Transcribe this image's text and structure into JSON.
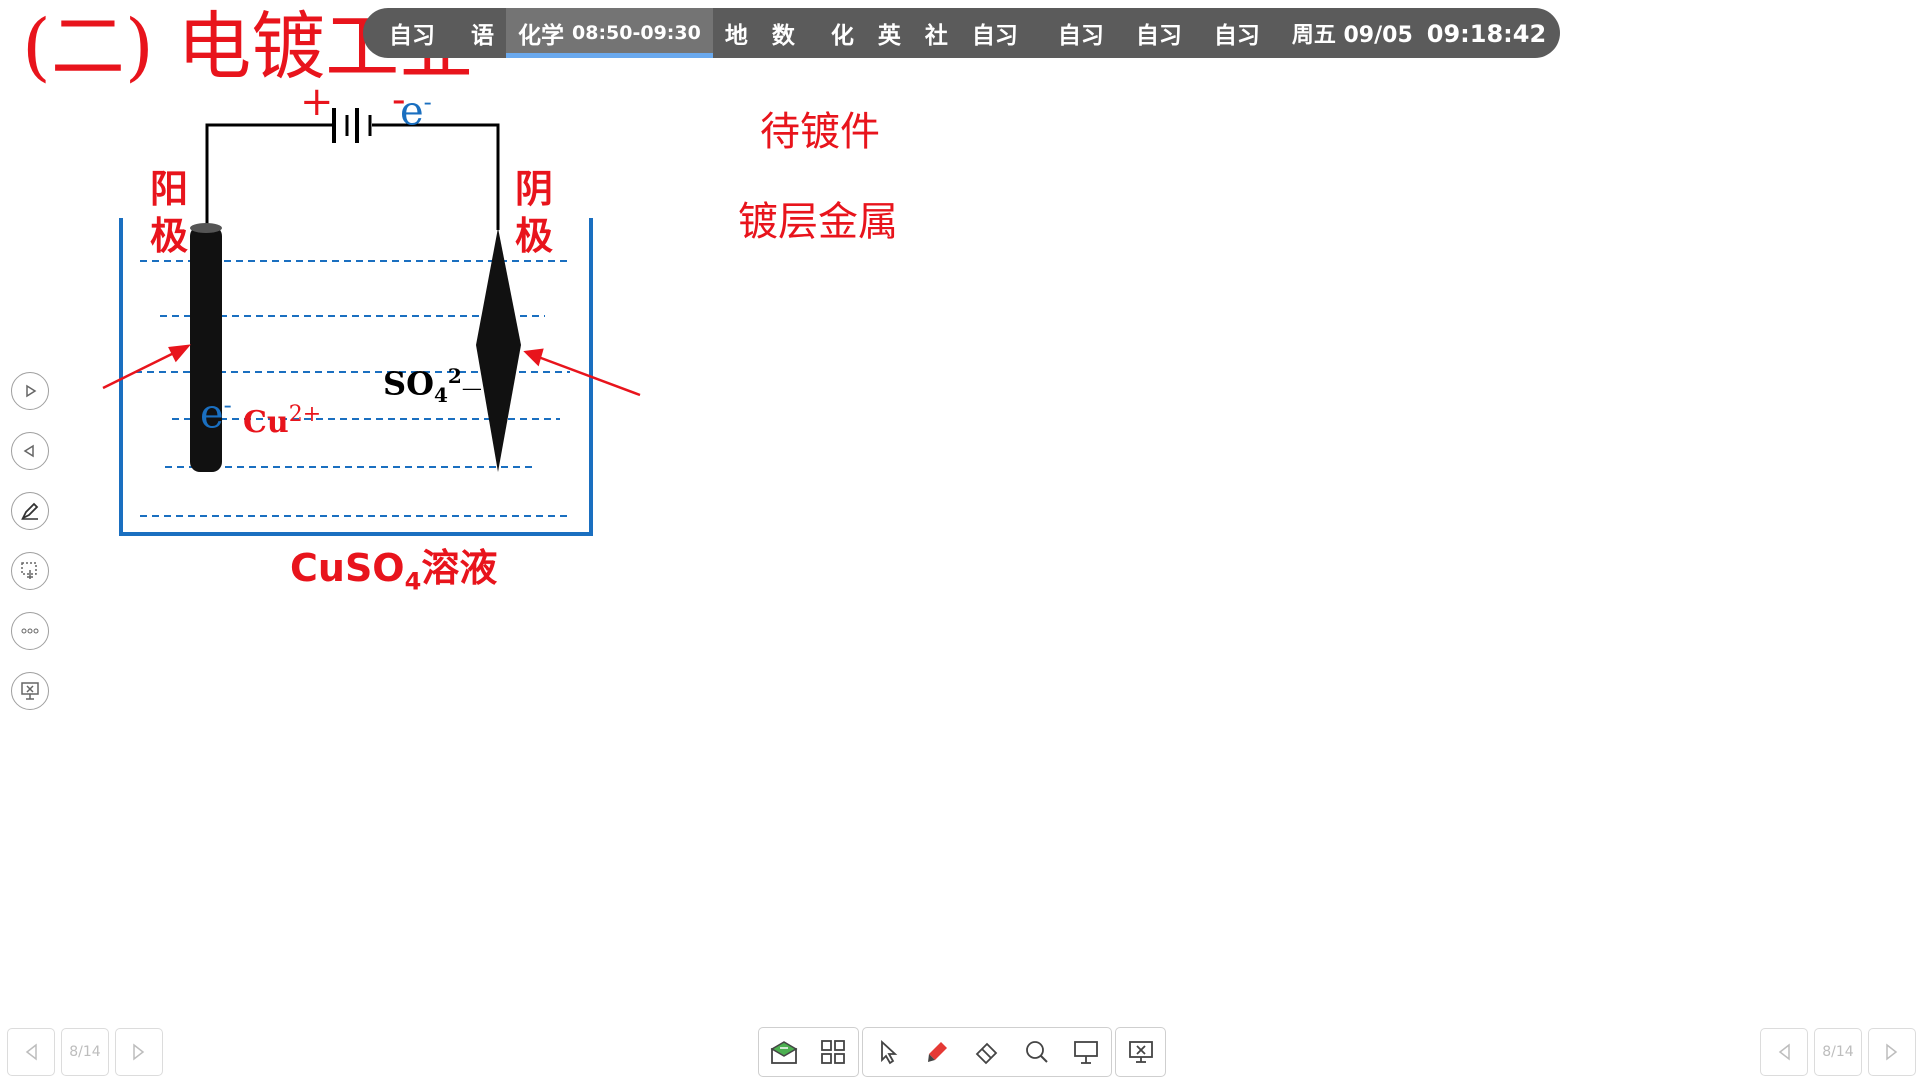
{
  "slide": {
    "title": "(二) 电镀工业",
    "labels": {
      "anode_line1": "阳",
      "anode_line2": "极",
      "cathode_line1": "阴",
      "cathode_line2": "极",
      "battery_plus": "+",
      "battery_minus": "-",
      "electron_top": "e",
      "electron_top_sup": "-",
      "electron_anode": "e",
      "electron_anode_sup": "-",
      "cu_ion": "Cu",
      "cu_ion_sup": "2+",
      "sulfate": "SO",
      "sulfate_sub": "4",
      "sulfate_sup": "2",
      "sulfate_dash": "—",
      "solution": "CuSO",
      "solution_sub": "4",
      "solution_suffix": "溶液",
      "to_be_plated": "待镀件",
      "plating_metal": "镀层金属"
    }
  },
  "schedule_bar": {
    "group1": [
      {
        "label": "自习"
      }
    ],
    "group2": [
      {
        "label": "语"
      }
    ],
    "current": {
      "label": "化学",
      "time": "08:50-09:30"
    },
    "group3": [
      {
        "label": "地"
      },
      {
        "label": "数"
      }
    ],
    "group4": [
      {
        "label": "化"
      },
      {
        "label": "英"
      },
      {
        "label": "社"
      },
      {
        "label": "自习"
      }
    ],
    "group5": [
      {
        "label": "自习"
      },
      {
        "label": "自习"
      },
      {
        "label": "自习"
      }
    ],
    "clock": {
      "day": "周五 09/05",
      "time": "09:18:42"
    }
  },
  "side_toolbar": [
    "next-slide-icon",
    "prev-slide-icon",
    "pen-icon",
    "select-area-icon",
    "more-icon",
    "end-show-icon"
  ],
  "page_nav": {
    "left_page": "8/14",
    "right_page": "8/14"
  },
  "bottom_toolbar": [
    "mail-icon",
    "grid-apps-icon",
    "pointer-icon",
    "brush-icon",
    "eraser-icon",
    "search-icon",
    "whiteboard-icon",
    "exit-show-icon"
  ]
}
